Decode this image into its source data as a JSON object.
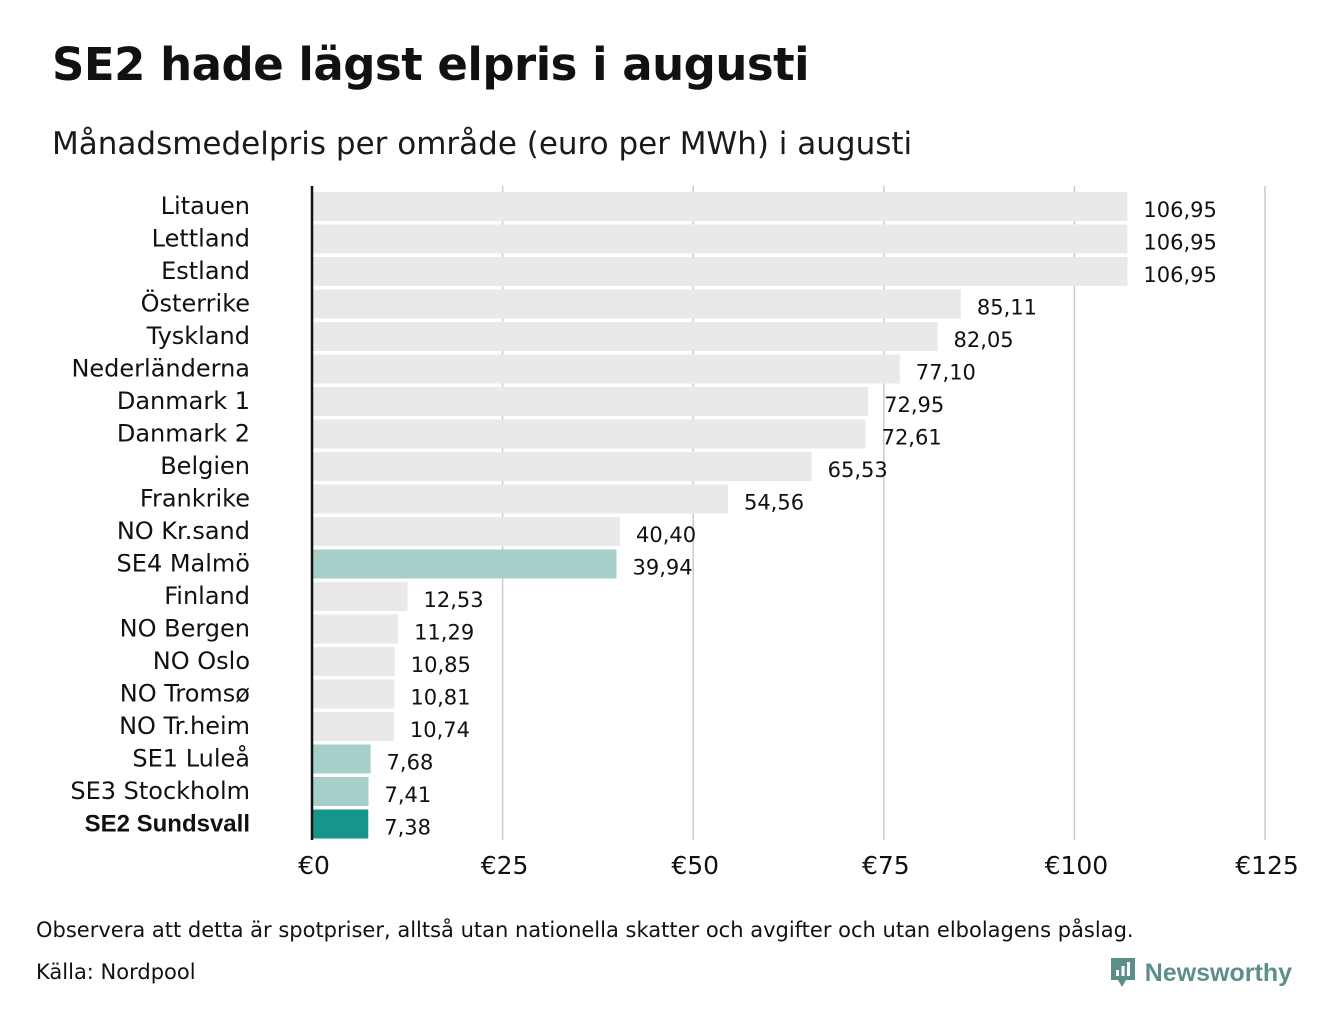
{
  "title": "SE2 hade lägst elpris i augusti",
  "subtitle": "Månadsmedelpris per område (euro per MWh) i augusti",
  "footnote": "Observera att detta är spotpriser, alltså utan nationella skatter och avgifter och utan elbolagens påslag.",
  "source": "Källa: Nordpool",
  "brand": {
    "name": "Newsworthy",
    "icon": "newsworthy-logo-icon"
  },
  "colors": {
    "default_bar": "#e9e9e9",
    "se_bar": "#a6cfc9",
    "highlight_bar": "#16968a",
    "grid": "#cccccc",
    "axis": "#111111",
    "brand": "#5d8f8a"
  },
  "chart_data": {
    "type": "bar",
    "orientation": "horizontal",
    "xlim": [
      0,
      125
    ],
    "ticks": [
      0,
      25,
      50,
      75,
      100,
      125
    ],
    "tick_labels": [
      "€0",
      "€25",
      "€50",
      "€75",
      "€100",
      "€125"
    ],
    "grid": true,
    "categories": [
      "Litauen",
      "Lettland",
      "Estland",
      "Österrike",
      "Tyskland",
      "Nederländerna",
      "Danmark 1",
      "Danmark 2",
      "Belgien",
      "Frankrike",
      "NO Kr.sand",
      "SE4 Malmö",
      "Finland",
      "NO Bergen",
      "NO Oslo",
      "NO Tromsø",
      "NO Tr.heim",
      "SE1 Luleå",
      "SE3 Stockholm",
      "SE2 Sundsvall"
    ],
    "values": [
      106.95,
      106.95,
      106.95,
      85.11,
      82.05,
      77.1,
      72.95,
      72.61,
      65.53,
      54.56,
      40.4,
      39.94,
      12.53,
      11.29,
      10.85,
      10.81,
      10.74,
      7.68,
      7.41,
      7.38
    ],
    "value_labels": [
      "106,95",
      "106,95",
      "106,95",
      "85,11",
      "82,05",
      "77,10",
      "72,95",
      "72,61",
      "65,53",
      "54,56",
      "40,40",
      "39,94",
      "12,53",
      "11,29",
      "10,85",
      "10,81",
      "10,74",
      "7,68",
      "7,41",
      "7,38"
    ],
    "bar_groups": [
      "default",
      "default",
      "default",
      "default",
      "default",
      "default",
      "default",
      "default",
      "default",
      "default",
      "default",
      "se",
      "default",
      "default",
      "default",
      "default",
      "default",
      "se",
      "se",
      "highlight"
    ]
  }
}
